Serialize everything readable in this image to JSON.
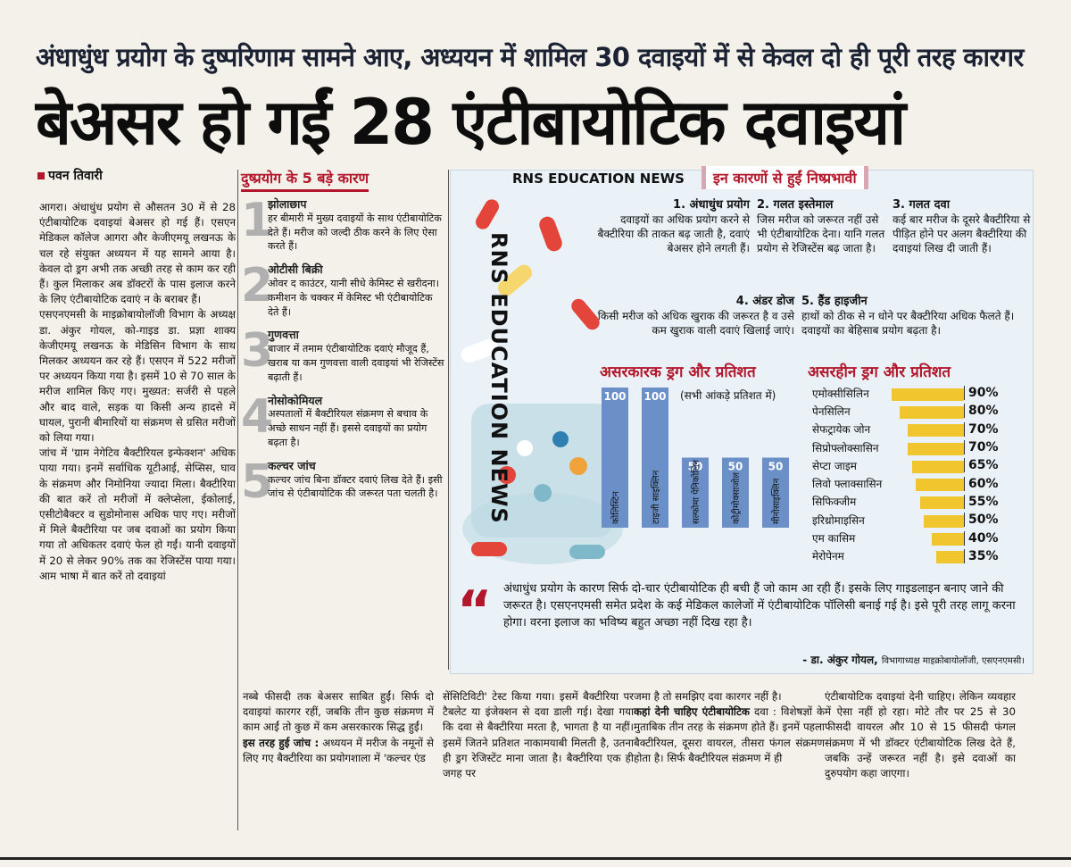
{
  "kicker": "अंधाधुंध प्रयोग के दुष्परिणाम सामने आए, अध्ययन में शामिल 30 दवाइयों में से केवल दो ही पूरी तरह कारगर",
  "headline": "बेअसर हो गईं 28 एंटीबायोटिक दवाइयां",
  "byline": "पवन तिवारी",
  "col1": [
    "आगरा। अंधाधुंध प्रयोग से औसतन 30 में से 28 एंटीबायोटिक दवाइयां बेअसर हो गई हैं। एसएन मेडिकल कॉलेज आगरा और केजीएमयू लखनऊ के चल रहे संयुक्त अध्ययन में यह सामने आया है। केवल दो ड्रग अभी तक अच्छी तरह से काम कर रही हैं। कुल मिलाकर अब डॉक्टरों के पास इलाज करने के लिए एंटीबायोटिक दवाएं न के बराबर हैं।",
    "एसएनएमसी के माइक्रोबायोलॉजी विभाग के अध्यक्ष डा. अंकुर गोयल, को-गाइड डा. प्रज्ञा शाक्य केजीएमयू लखनऊ के मेडिसिन विभाग के साथ मिलकर अध्ययन कर रहे हैं। एसएन में 522 मरीजों पर अध्ययन किया गया है। इसमें 10 से 70 साल के मरीज शामिल किए गए। मुख्यत: सर्जरी से पहले और बाद वाले, सड़क या किसी अन्य हादसे में घायल, पुरानी बीमारियों या संक्रमण से ग्रसित मरीजों को लिया गया।",
    "जांच में 'ग्राम नेगेटिव बैक्टीरियल इन्फेक्शन' अधिक पाया गया। इनमें सर्वाधिक यूटीआई, सेप्सिस, घाव के संक्रमण और निमोनिया ज्यादा मिला। बैक्टीरिया की बात करें तो मरीजों में क्लेप्सेला, ईकोलाई, एसीटोबैक्टर व सुडोमोनास अधिक पाए गए। मरीजों में मिले बैक्टीरिया पर जब दवाओं का प्रयोग किया गया तो अधिकतर दवाएं फेल हो गईं। यानी दवाइयों में 20 से लेकर 90% तक का रेजिस्टेंस पाया गया। आम भाषा में बात करें तो दवाइयां"
  ],
  "causes": {
    "title": "दुष्प्रयोग के 5 बड़े कारण",
    "items": [
      {
        "n": "1",
        "t": "झोलाछाप",
        "d": "हर बीमारी में मुख्य दवाइयों के साथ एंटीबायोटिक देते हैं। मरीज को जल्दी ठीक करने के लिए ऐसा करते हैं।"
      },
      {
        "n": "2",
        "t": "ओटीसी बिक्री",
        "d": "ओवर द काउंटर, यानी सीधे केमिस्ट से खरीदना। कमीशन के चक्कर में केमिस्ट भी एंटीबायोटिक देते हैं।"
      },
      {
        "n": "3",
        "t": "गुणवत्ता",
        "d": "बाजार में तमाम एंटीबायोटिक दवाएं मौजूद हैं, खराब या कम गुणवत्ता वाली दवाइयां भी रेजिस्टेंस बढ़ाती हैं।"
      },
      {
        "n": "4",
        "t": "नोसोकोमियल",
        "d": "अस्पतालों में बैक्टीरियल संक्रमण से बचाव के अच्छे साधन नहीं हैं। इससे दवाइयों का प्रयोग बढ़ता है।"
      },
      {
        "n": "5",
        "t": "कल्चर जांच",
        "d": "कल्चर जांच बिना डॉक्टर दवाएं लिख देते हैं। इसी जांच से एंटीबायोटिक की जरूरत पता चलती है।"
      }
    ]
  },
  "panel": {
    "brand": "RNS EDUCATION NEWS",
    "tag": "इन कारणों से हुईं निष्प्रभावी",
    "watermark": "RNS EDUCATION NEWS",
    "reasons": [
      {
        "t": "1. अंधाधुंध प्रयोग",
        "d": "दवाइयों का अधिक प्रयोग करने से बैक्टीरिया की ताकत बढ़ जाती है, दवाएं बेअसर होने लगती हैं।"
      },
      {
        "t": "2. गलत इस्तेमाल",
        "d": "जिस मरीज को जरूरत नहीं उसे भी एंटीबायोटिक देना। यानि गलत प्रयोग से रेजिस्टेंस बढ़ जाता है।"
      },
      {
        "t": "3. गलत दवा",
        "d": "कई बार मरीज के दूसरे बैक्टीरिया से पीड़ित होने पर अलग बैक्टीरिया की दवाइयां लिख दी जाती हैं।"
      },
      {
        "t": "4. अंडर डोज",
        "d": "किसी मरीज को अधिक खुराक की जरूरत है व उसे कम खुराक वाली दवाएं खिलाई जाएं।"
      },
      {
        "t": "5. हैंड हाइजीन",
        "d": "हाथों को ठीक से न धोने पर बैक्टीरिया अधिक फैलते हैं। दवाइयों का बेहिसाब प्रयोग बढ़ता है।"
      }
    ],
    "chart1_title": "असरकारक ड्रग और प्रतिशत",
    "chart1_note": "(सभी आंकड़े प्रतिशत में)",
    "chart2_title": "असरहीन ड्रग और प्रतिशत",
    "quote": "अंधाधुंध प्रयोग के कारण सिर्फ दो-चार एंटीबायोटिक ही बची हैं जो काम आ रही हैं। इसके लिए गाइडलाइन बनाए जाने की जरूरत है। एसएनएमसी समेत प्रदेश के कई मेडिकल कालेजों में एंटीबायोटिक पॉलिसी बनाई गई है। इसे पूरी तरह लागू करना होगा। वरना इलाज का भविष्य बहुत अच्छा नहीं दिख रहा है।",
    "quote_by": "- डा. अंकुर गोयल,",
    "quote_role": "विभागाध्यक्ष माइक्रोबायोलॉजी, एसएनएमसी।"
  },
  "chart_data": [
    {
      "type": "bar",
      "title": "असरकारक ड्रग और प्रतिशत",
      "categories": [
        "कोलिस्टिन",
        "टाइजी साइक्लिन",
        "सल्फोमा पेनिकोलिन",
        "कोट्रीमोक्साजोल",
        "मीनोसाइक्लिन"
      ],
      "values": [
        100,
        100,
        50,
        50,
        50
      ],
      "ylim": [
        0,
        100
      ]
    },
    {
      "type": "bar",
      "title": "असरहीन ड्रग और प्रतिशत",
      "categories": [
        "एमोक्सीसिलिन",
        "पेनसिलिन",
        "सेफट्रायेक जोन",
        "सिप्रोफ्लोक्सासिन",
        "सेप्टा जाइम",
        "लिवो फ्लाक्सासिन",
        "सिफिक्जीम",
        "इरिथ्रोमाइसिन",
        "एम कासिम",
        "मेरोपेनम"
      ],
      "values": [
        90,
        80,
        70,
        70,
        65,
        60,
        55,
        50,
        40,
        35
      ],
      "labels": [
        "90%",
        "80%",
        "70%",
        "70%",
        "65%",
        "60%",
        "55%",
        "50%",
        "40%",
        "35%"
      ],
      "xlim": [
        0,
        100
      ]
    }
  ],
  "bottom": {
    "c1": "नब्बे फीसदी तक बेअसर साबित हुईं। सिर्फ दो दवाइयां कारगर रहीं, जबकि तीन कुछ संक्रमण में काम आईं तो कुछ में कम असरकारक सिद्ध हुईं।",
    "c1_sub": "इस तरह हुई जांच :",
    "c1b": "अध्ययन में मरीज के नमूनों से लिए गए बैक्टीरिया का प्रयोगशाला में 'कल्चर एंड",
    "c2": "सेंसिटिविटी' टेस्ट किया गया। इसमें बैक्टीरिया पर टैबलेट या इंजेक्शन से दवा डाली गई। देखा गया कि दवा से बैक्टीरिया मरता है, भागता है या नहीं। इसमें जितने प्रतिशत नाकामयाबी मिलती है, उतना ही ड्रग रेजिस्टेंट माना जाता है। बैक्टीरिया एक ही जगह पर",
    "c3a": "जमा है तो समझिए दवा कारगर नहीं है।",
    "c3_sub": "कहां देनी चाहिए एंटीबायोटिक",
    "c3b": "दवा : विशेषज्ञों के मुताबिक तीन तरह के संक्रमण होते हैं। इनमें पहला बैक्टीरियल, दूसरा वायरल, तीसरा फंगल संक्रमण होता है। सिर्फ बैक्टीरियल संक्रमण में ही",
    "c4": "एंटीबायोटिक दवाइयां देनी चाहिए। लेकिन व्यवहार में ऐसा नहीं हो रहा। मोटे तौर पर 25 से 30 फीसदी वायरल और 10 से 15 फीसदी फंगल संक्रमण में भी डॉक्टर एंटीबायोटिक लिख देते हैं, जबकि उन्हें जरूरत नहीं है। इसे दवाओं का दुरुपयोग कहा जाएगा।"
  }
}
